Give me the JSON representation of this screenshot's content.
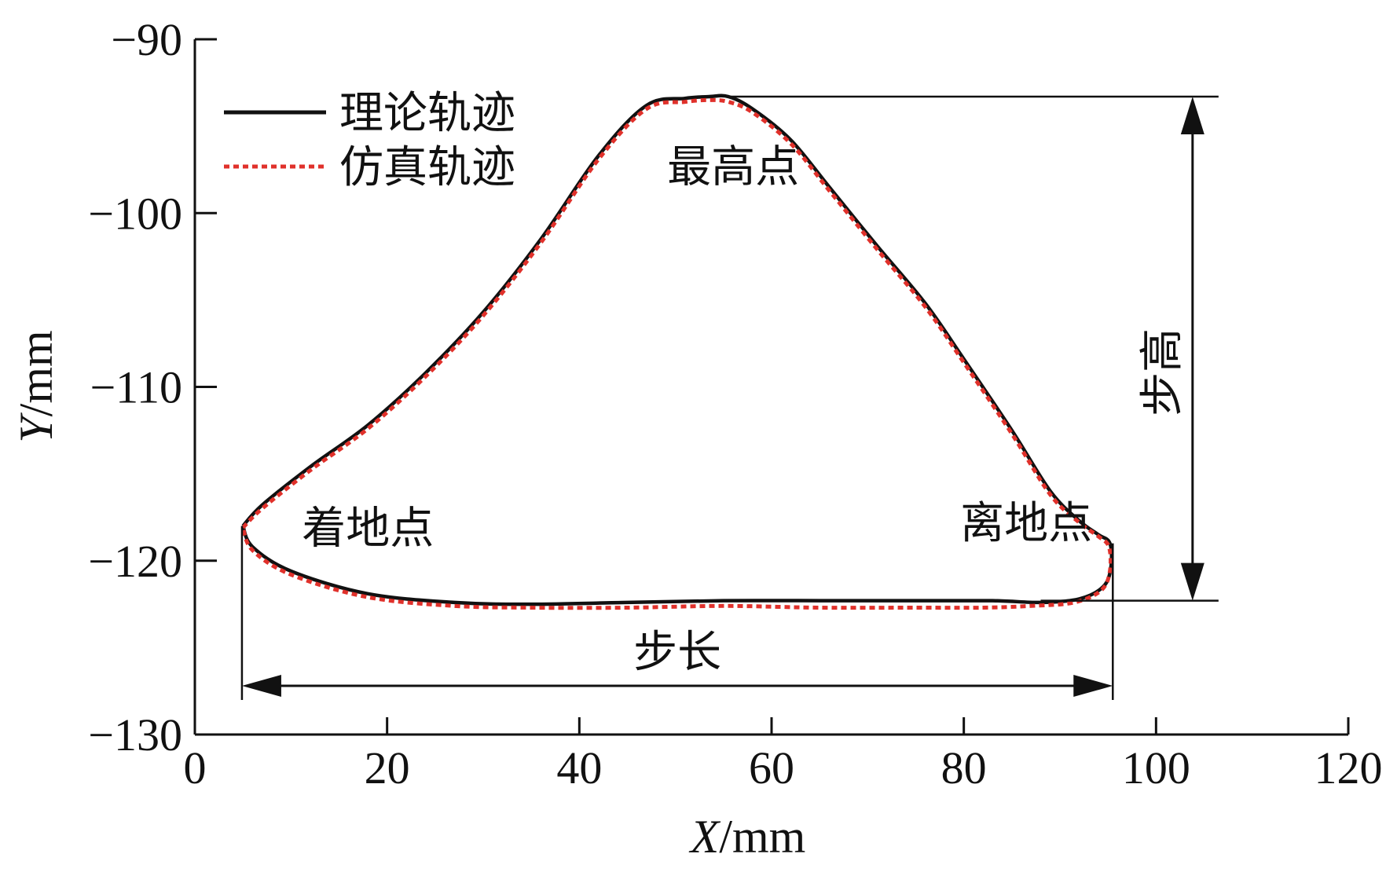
{
  "chart_data": {
    "type": "line",
    "xlabel_var": "X",
    "xlabel_unit": "/mm",
    "ylabel_var": "Y",
    "ylabel_unit": "/mm",
    "xlim": [
      0,
      120
    ],
    "ylim": [
      -130,
      -90
    ],
    "xticks": [
      0,
      20,
      40,
      60,
      80,
      100,
      120
    ],
    "yticks": [
      -90,
      -100,
      -110,
      -120,
      -130
    ],
    "xtick_labels": [
      "0",
      "20",
      "40",
      "60",
      "80",
      "100",
      "120"
    ],
    "ytick_labels": [
      "−90",
      "−100",
      "−110",
      "−120",
      "−130"
    ],
    "grid": false,
    "legend_position": "top-left",
    "series": [
      {
        "name": "理论轨迹",
        "color": "#111111",
        "style": "solid",
        "x": [
          5,
          7,
          12,
          18,
          24,
          30,
          36,
          42,
          47,
          51,
          53.5,
          55.5,
          58,
          62,
          66,
          71,
          76,
          80,
          85,
          89,
          92,
          94,
          95.2,
          95.3,
          94.5,
          92,
          88,
          83,
          75,
          65,
          55,
          45,
          35,
          27,
          18,
          10,
          6,
          5
        ],
        "y": [
          -118,
          -116.8,
          -114.6,
          -112.2,
          -109.2,
          -105.7,
          -101.5,
          -96.7,
          -93.8,
          -93.4,
          -93.3,
          -93.3,
          -94,
          -95.8,
          -98.5,
          -101.9,
          -105.2,
          -108.4,
          -112.5,
          -116,
          -117.7,
          -118.5,
          -119,
          -120.4,
          -121.5,
          -122.2,
          -122.4,
          -122.3,
          -122.3,
          -122.3,
          -122.3,
          -122.4,
          -122.5,
          -122.4,
          -121.9,
          -120.6,
          -119.2,
          -118
        ]
      },
      {
        "name": "仿真轨迹",
        "color": "#e0312b",
        "style": "dotted",
        "x": [
          5,
          7,
          12,
          18,
          24,
          30,
          36,
          42,
          47,
          51,
          53.5,
          55.5,
          58,
          62,
          66,
          71,
          76,
          80,
          85,
          89,
          92,
          94,
          95.1,
          95.2,
          94.3,
          91.5,
          87,
          82,
          75,
          65,
          55,
          45,
          35,
          27,
          18,
          10,
          6,
          5
        ],
        "y": [
          -118.1,
          -117,
          -114.8,
          -112.4,
          -109.4,
          -105.9,
          -101.7,
          -96.9,
          -94,
          -93.6,
          -93.5,
          -93.6,
          -94.2,
          -96,
          -98.7,
          -102.1,
          -105.4,
          -108.6,
          -112.7,
          -116.2,
          -117.8,
          -118.6,
          -119.2,
          -120.6,
          -121.7,
          -122.4,
          -122.6,
          -122.7,
          -122.7,
          -122.7,
          -122.6,
          -122.7,
          -122.7,
          -122.6,
          -122.1,
          -120.8,
          -119.4,
          -118.1
        ]
      }
    ],
    "annotations": {
      "highest_point": {
        "text": "最高点",
        "x": 56,
        "y": -98.2
      },
      "landing_point": {
        "text": "着地点",
        "x": 18,
        "y": -119
      },
      "liftoff_point": {
        "text": "离地点",
        "x": 86.5,
        "y": -118.7
      },
      "step_height": {
        "text": "步高",
        "x_arrow": 103.8,
        "y_top": -93.3,
        "y_bottom": -122.3,
        "ref_line_x_end": 106.5
      },
      "step_length": {
        "text": "步长",
        "x_left": 4.9,
        "x_right": 95.5,
        "y_arrow": -127.2,
        "label_y": -125.2
      }
    }
  }
}
